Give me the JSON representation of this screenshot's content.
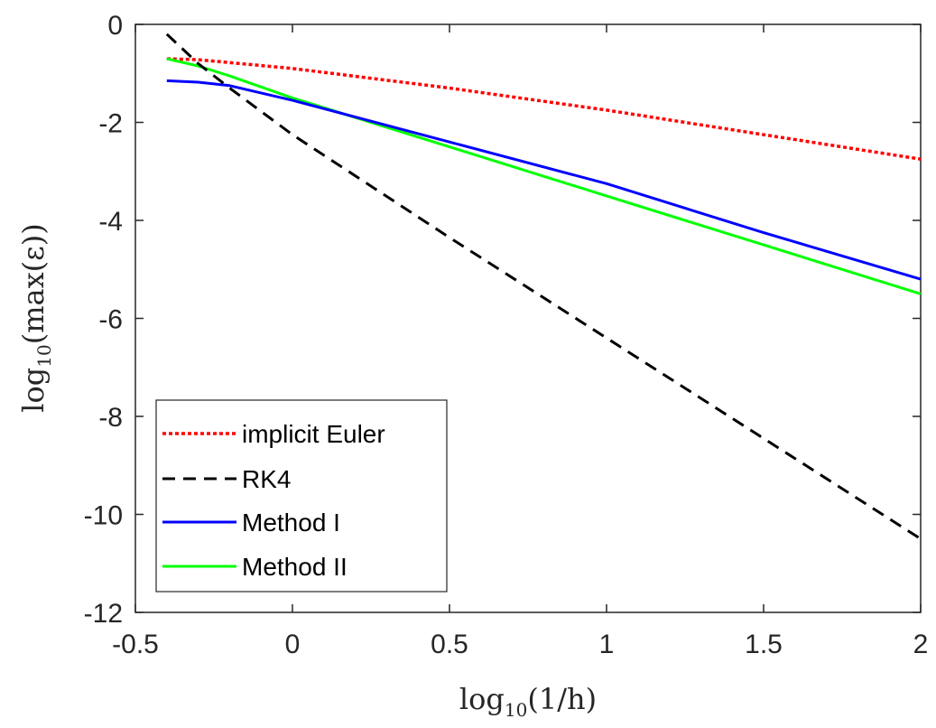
{
  "chart_data": {
    "type": "line",
    "title": "",
    "xlabel": {
      "prefix": "log",
      "sub": "10",
      "suffix": "(1/h)"
    },
    "ylabel": {
      "prefix": "log",
      "sub": "10",
      "suffix": "(max(ε))"
    },
    "xlim": [
      -0.5,
      2
    ],
    "ylim": [
      -12,
      0
    ],
    "xticks": [
      -0.5,
      0,
      0.5,
      1,
      1.5,
      2
    ],
    "xtick_labels": [
      "-0.5",
      "0",
      "0.5",
      "1",
      "1.5",
      "2"
    ],
    "yticks": [
      -12,
      -10,
      -8,
      -6,
      -4,
      -2,
      0
    ],
    "ytick_labels": [
      "-12",
      "-10",
      "-8",
      "-6",
      "-4",
      "-2",
      "0"
    ],
    "grid": false,
    "legend_position": "bottom-left",
    "series": [
      {
        "name": "implicit Euler",
        "color": "#ff0000",
        "style": "dotted",
        "x": [
          -0.4,
          -0.3,
          -0.2,
          0,
          0.5,
          1,
          1.5,
          2
        ],
        "y": [
          -0.7,
          -0.72,
          -0.78,
          -0.9,
          -1.3,
          -1.75,
          -2.25,
          -2.75
        ]
      },
      {
        "name": "RK4",
        "color": "#000000",
        "style": "dashed",
        "x": [
          -0.4,
          -0.3,
          -0.2,
          0,
          0.5,
          1,
          1.5,
          2
        ],
        "y": [
          -0.2,
          -0.8,
          -1.3,
          -2.25,
          -4.35,
          -6.4,
          -8.45,
          -10.5
        ]
      },
      {
        "name": "Method I",
        "color": "#0000ff",
        "style": "solid",
        "x": [
          -0.4,
          -0.3,
          -0.2,
          0,
          0.5,
          1,
          1.5,
          2
        ],
        "y": [
          -1.15,
          -1.18,
          -1.25,
          -1.55,
          -2.4,
          -3.25,
          -4.25,
          -5.2
        ]
      },
      {
        "name": "Method II",
        "color": "#00ff00",
        "style": "solid",
        "x": [
          -0.4,
          -0.3,
          -0.2,
          0,
          0.5,
          1,
          1.5,
          2
        ],
        "y": [
          -0.7,
          -0.85,
          -1.05,
          -1.5,
          -2.5,
          -3.5,
          -4.5,
          -5.5
        ]
      }
    ]
  }
}
